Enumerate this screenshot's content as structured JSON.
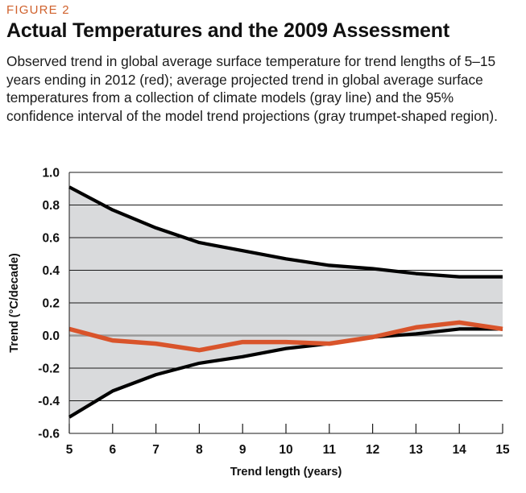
{
  "figure": {
    "label": "FIGURE 2",
    "title": "Actual Temperatures and the 2009 Assessment",
    "subtitle": "Observed trend in global average surface temperature for trend lengths of 5–15 years ending in 2012 (red); average projected trend in global average surface temperatures from a collection of climate models (gray line) and the 95% confidence interval of the model trend projections (gray trumpet-shaped region)."
  },
  "colors": {
    "accent": "#d0612c",
    "observed": "#d9542b",
    "band_fill": "#d9dadc",
    "band_edge": "#000000",
    "zero_line": "#9a9a9a",
    "grid": "#1a1a1a"
  },
  "chart_data": {
    "type": "line",
    "title": "Actual Temperatures and the 2009 Assessment",
    "xlabel": "Trend length (years)",
    "ylabel": "Trend (°C/decade)",
    "x": [
      5,
      6,
      7,
      8,
      9,
      10,
      11,
      12,
      13,
      14,
      15
    ],
    "xlim": [
      5,
      15
    ],
    "ylim": [
      -0.6,
      1.0
    ],
    "x_ticks": [
      "5",
      "6",
      "7",
      "8",
      "9",
      "10",
      "11",
      "12",
      "13",
      "14",
      "15"
    ],
    "y_ticks": [
      "1.0",
      "0.8",
      "0.6",
      "0.4",
      "0.2",
      "0.0",
      "-0.2",
      "-0.4",
      "-0.6"
    ],
    "y_tick_values": [
      1.0,
      0.8,
      0.6,
      0.4,
      0.2,
      0.0,
      -0.2,
      -0.4,
      -0.6
    ],
    "grid": true,
    "series": [
      {
        "name": "95% confidence interval upper bound",
        "role": "band_upper",
        "values": [
          0.91,
          0.77,
          0.66,
          0.57,
          0.52,
          0.47,
          0.43,
          0.41,
          0.38,
          0.36,
          0.36
        ]
      },
      {
        "name": "95% confidence interval lower bound",
        "role": "band_lower",
        "values": [
          -0.5,
          -0.34,
          -0.24,
          -0.17,
          -0.13,
          -0.08,
          -0.05,
          -0.01,
          0.01,
          0.04,
          0.04
        ]
      },
      {
        "name": "Observed trend ending in 2012",
        "role": "observed",
        "values": [
          0.04,
          -0.03,
          -0.05,
          -0.09,
          -0.04,
          -0.04,
          -0.05,
          -0.01,
          0.05,
          0.08,
          0.04
        ]
      }
    ]
  }
}
